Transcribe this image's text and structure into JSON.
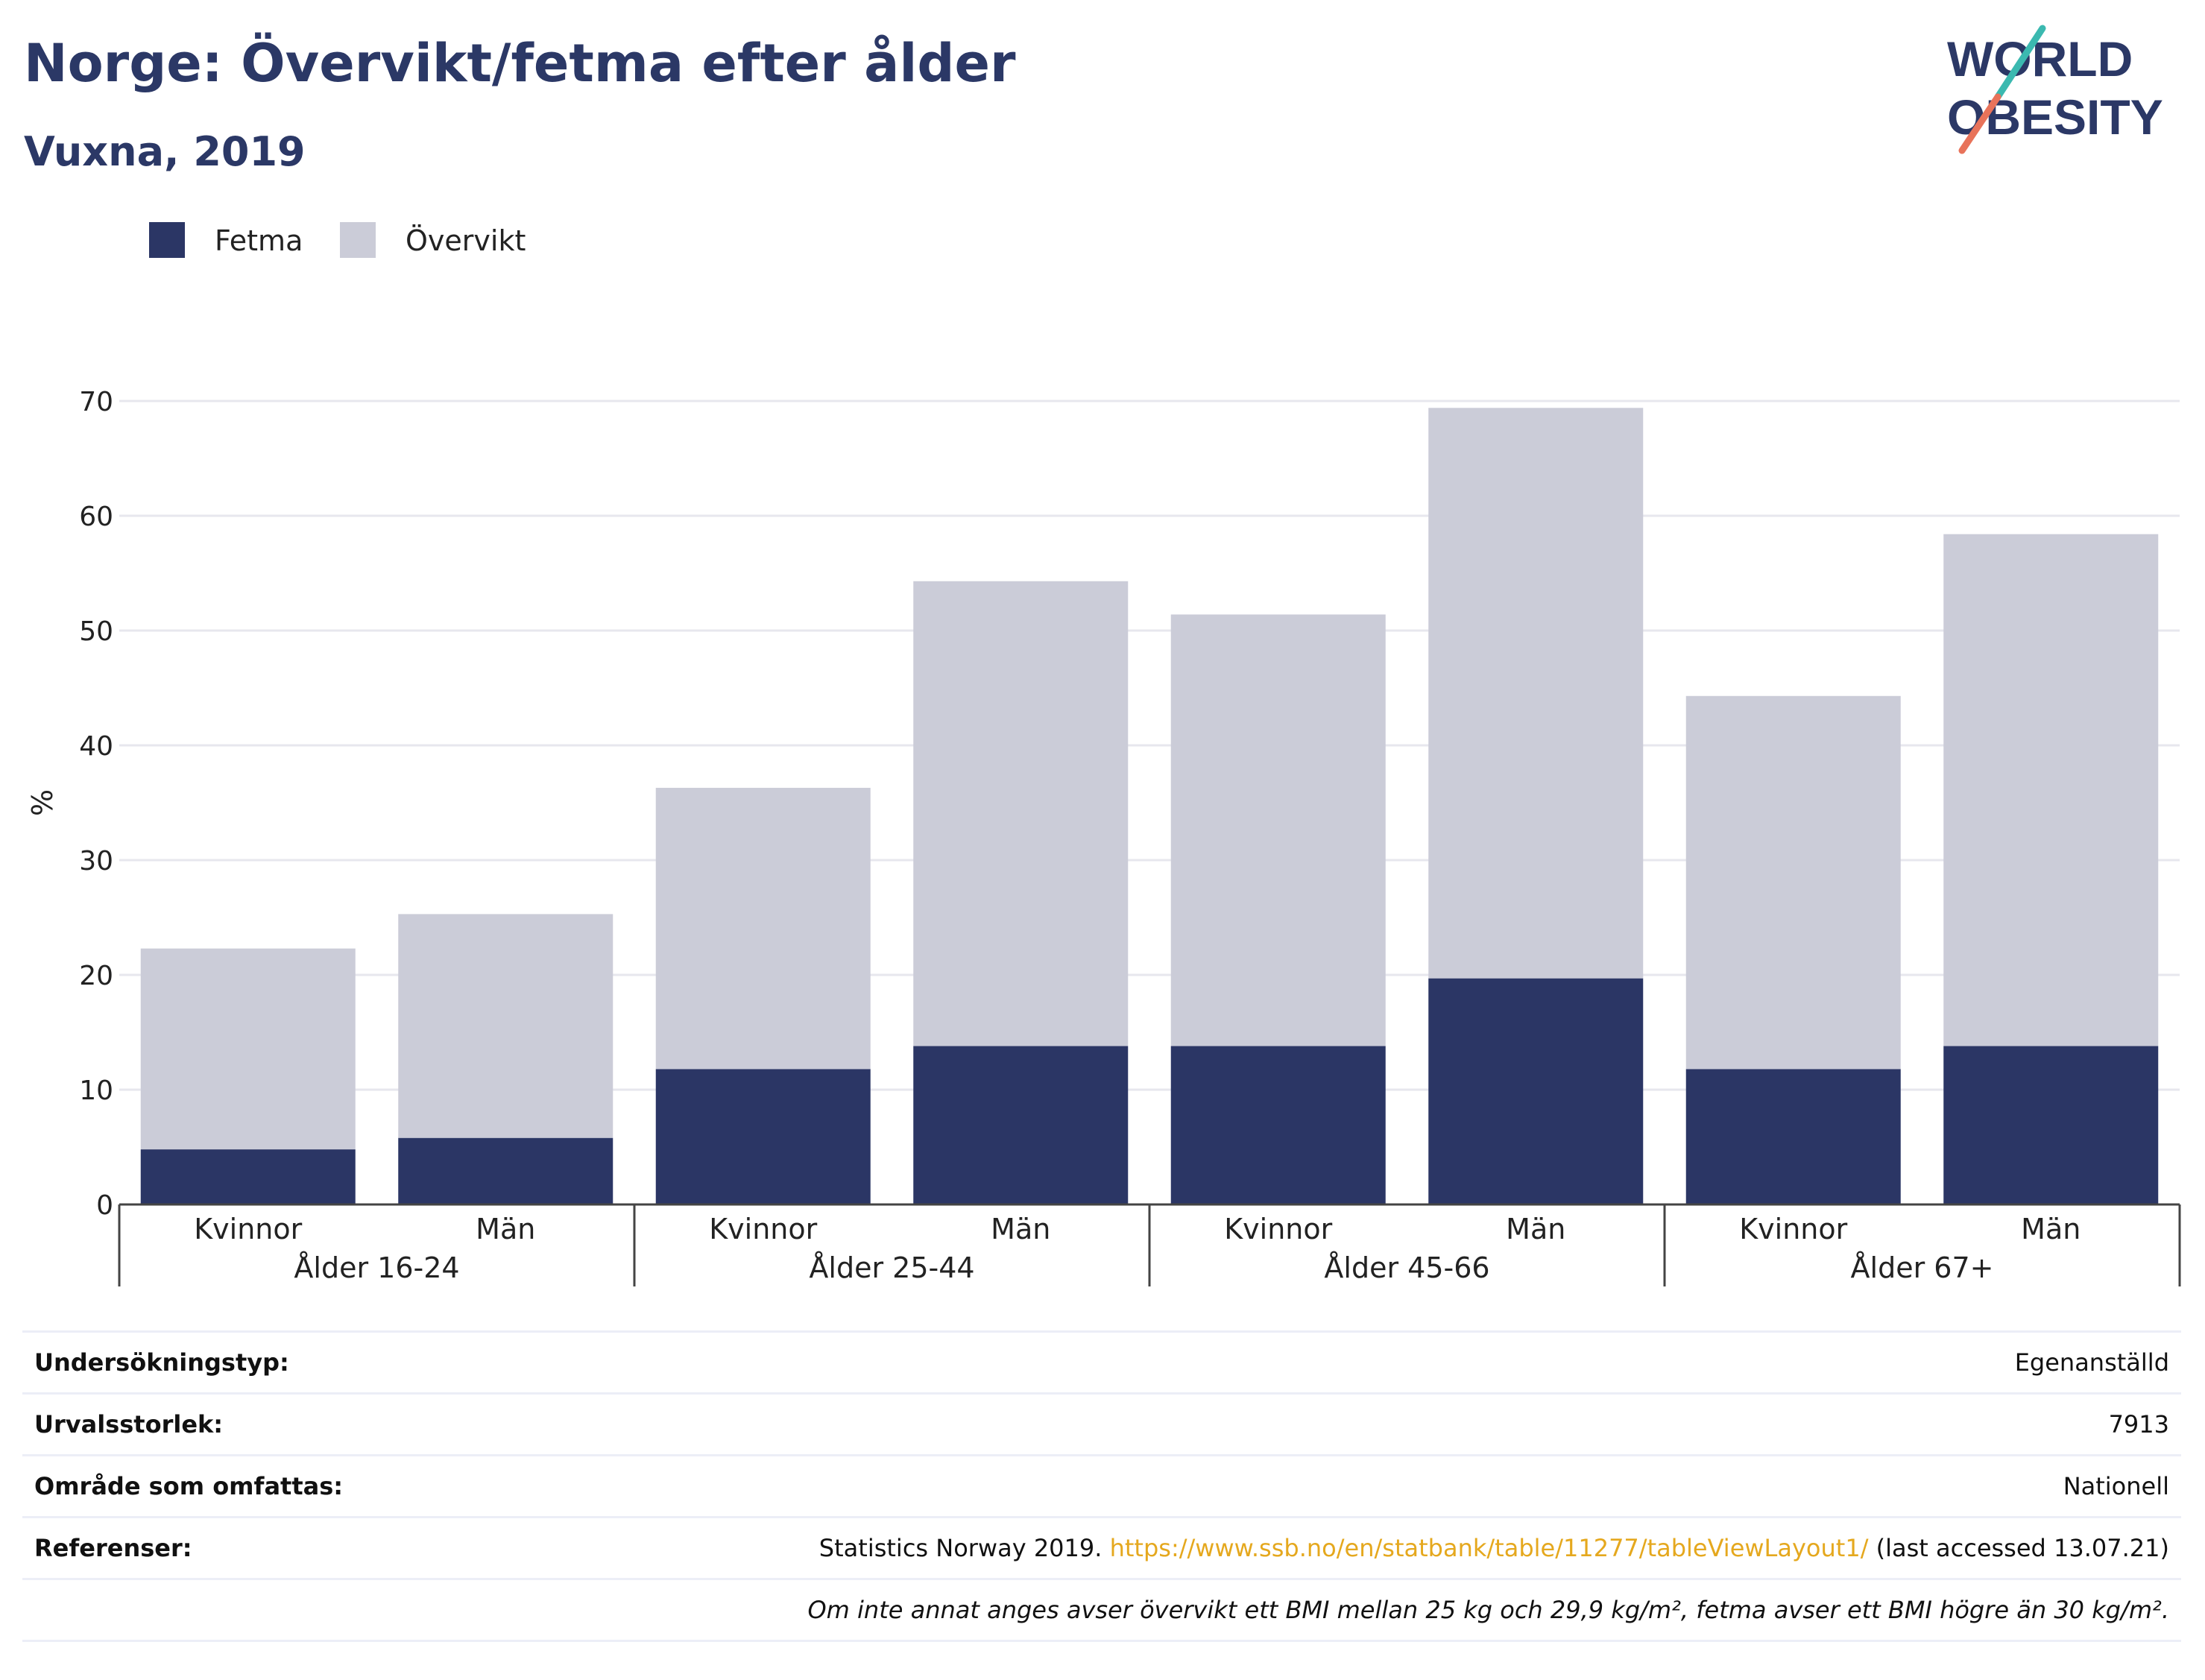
{
  "header": {
    "title": "Norge: Övervikt/fetma efter ålder",
    "subtitle": "Vuxna, 2019",
    "logo_line1": "WORLD",
    "logo_line2": "OBESITY"
  },
  "colors": {
    "fetma": "#2b3665",
    "overvikt": "#cbccd8",
    "title": "#2b3866",
    "link": "#e5a81e",
    "logo_slash_teal": "#3bb9b0",
    "logo_slash_coral": "#e8735a"
  },
  "chart_data": {
    "type": "bar",
    "stacked": true,
    "ylabel": "%",
    "ylim": [
      0,
      70
    ],
    "yticks": [
      0,
      10,
      20,
      30,
      40,
      50,
      60,
      70
    ],
    "grid": true,
    "legend_position": "top-left",
    "groups": [
      "Ålder 16-24",
      "Ålder 25-44",
      "Ålder 45-66",
      "Ålder 67+"
    ],
    "subcategories": [
      "Kvinnor",
      "Män"
    ],
    "categories": [
      "Kvinnor",
      "Män",
      "Kvinnor",
      "Män",
      "Kvinnor",
      "Män",
      "Kvinnor",
      "Män"
    ],
    "series": [
      {
        "name": "Fetma",
        "values": [
          4.8,
          5.8,
          11.8,
          13.8,
          13.8,
          19.7,
          11.8,
          13.8
        ]
      },
      {
        "name": "Övervikt",
        "values": [
          17.5,
          19.5,
          24.5,
          40.5,
          37.6,
          49.7,
          32.5,
          44.6
        ]
      }
    ]
  },
  "info": {
    "rows": [
      {
        "label": "Undersökningstyp:",
        "value": "Egenanställd"
      },
      {
        "label": "Urvalsstorlek:",
        "value": "7913"
      },
      {
        "label": "Område som omfattas:",
        "value": "Nationell"
      }
    ],
    "reference": {
      "label": "Referenser:",
      "prefix": "Statistics Norway 2019. ",
      "link": "https://www.ssb.no/en/statbank/table/11277/tableViewLayout1/",
      "suffix": " (last accessed 13.07.21)"
    },
    "note": "Om inte annat anges avser övervikt ett BMI mellan 25 kg och 29,9 kg/m², fetma avser ett BMI högre än 30 kg/m²."
  }
}
